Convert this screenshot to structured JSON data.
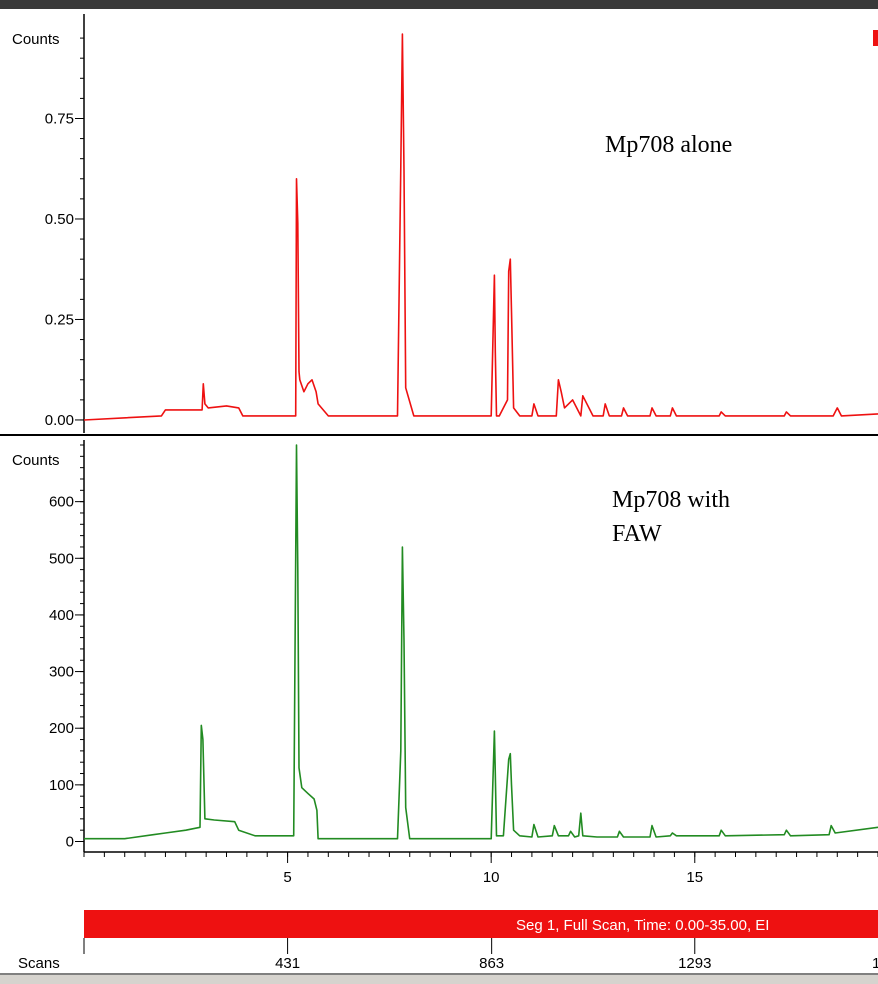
{
  "chart_data": [
    {
      "type": "line",
      "ylabel": "Counts",
      "annotation": "Mp708 alone",
      "color": "#ee1111",
      "xlim": [
        0,
        19.5
      ],
      "ylim": [
        -0.025,
        1.0
      ],
      "yticks": [
        {
          "value": 0.0,
          "label": "0.00"
        },
        {
          "value": 0.25,
          "label": "0.25"
        },
        {
          "value": 0.5,
          "label": "0.50"
        },
        {
          "value": 0.75,
          "label": "0.75"
        }
      ],
      "series": [
        {
          "x": [
            0,
            1.9,
            2.0,
            2.9,
            2.93,
            2.97,
            3.05,
            3.5,
            3.8,
            3.9,
            4.3,
            5.2,
            5.22,
            5.25,
            5.28,
            5.3,
            5.4,
            5.5,
            5.6,
            5.7,
            5.75,
            6.0,
            7.7,
            7.78,
            7.82,
            7.86,
            7.9,
            8.1,
            10.0,
            10.08,
            10.1,
            10.13,
            10.2,
            10.4,
            10.43,
            10.47,
            10.5,
            10.55,
            10.7,
            11.0,
            11.05,
            11.15,
            11.3,
            11.6,
            11.65,
            11.72,
            11.8,
            12.0,
            12.2,
            12.25,
            12.5,
            12.75,
            12.8,
            12.9,
            13.2,
            13.25,
            13.35,
            13.9,
            13.95,
            14.05,
            14.4,
            14.45,
            14.55,
            15.6,
            15.65,
            15.75,
            17.2,
            17.25,
            17.35,
            18.4,
            18.5,
            18.6,
            19.5
          ],
          "y": [
            0.0,
            0.01,
            0.025,
            0.025,
            0.09,
            0.04,
            0.03,
            0.035,
            0.03,
            0.01,
            0.01,
            0.01,
            0.6,
            0.49,
            0.12,
            0.1,
            0.07,
            0.09,
            0.1,
            0.07,
            0.04,
            0.01,
            0.01,
            0.63,
            0.96,
            0.62,
            0.08,
            0.01,
            0.01,
            0.36,
            0.17,
            0.01,
            0.01,
            0.05,
            0.37,
            0.4,
            0.27,
            0.03,
            0.01,
            0.01,
            0.04,
            0.01,
            0.01,
            0.01,
            0.1,
            0.07,
            0.03,
            0.05,
            0.01,
            0.06,
            0.01,
            0.01,
            0.04,
            0.01,
            0.01,
            0.03,
            0.01,
            0.01,
            0.03,
            0.01,
            0.01,
            0.03,
            0.01,
            0.01,
            0.02,
            0.01,
            0.01,
            0.02,
            0.01,
            0.01,
            0.03,
            0.01,
            0.015
          ]
        }
      ]
    },
    {
      "type": "line",
      "ylabel": "Counts",
      "annotation": [
        "Mp708 with",
        "FAW"
      ],
      "color": "#228b22",
      "xlim": [
        0,
        19.5
      ],
      "ylim": [
        -15,
        700
      ],
      "yticks": [
        {
          "value": 0,
          "label": "0"
        },
        {
          "value": 100,
          "label": "100"
        },
        {
          "value": 200,
          "label": "200"
        },
        {
          "value": 300,
          "label": "300"
        },
        {
          "value": 400,
          "label": "400"
        },
        {
          "value": 500,
          "label": "500"
        },
        {
          "value": 600,
          "label": "600"
        }
      ],
      "series": [
        {
          "x": [
            0,
            1.0,
            1.7,
            2.0,
            2.5,
            2.85,
            2.88,
            2.92,
            2.97,
            3.2,
            3.7,
            3.8,
            4.2,
            5.15,
            5.22,
            5.25,
            5.28,
            5.35,
            5.5,
            5.65,
            5.72,
            5.75,
            7.7,
            7.78,
            7.82,
            7.86,
            7.9,
            8.0,
            10.0,
            10.08,
            10.1,
            10.13,
            10.3,
            10.43,
            10.47,
            10.5,
            10.55,
            10.7,
            11.0,
            11.05,
            11.15,
            11.5,
            11.55,
            11.65,
            11.9,
            11.95,
            12.05,
            12.15,
            12.2,
            12.25,
            12.6,
            13.1,
            13.15,
            13.25,
            13.9,
            13.95,
            14.05,
            14.4,
            14.45,
            14.55,
            15.6,
            15.65,
            15.75,
            17.2,
            17.25,
            17.35,
            18.3,
            18.35,
            18.45,
            19.5
          ],
          "y": [
            5,
            5,
            12,
            15,
            20,
            25,
            205,
            180,
            40,
            38,
            35,
            20,
            10,
            10,
            700,
            480,
            130,
            95,
            85,
            75,
            55,
            5,
            5,
            160,
            520,
            355,
            60,
            5,
            5,
            195,
            120,
            10,
            10,
            145,
            155,
            100,
            20,
            10,
            8,
            30,
            8,
            10,
            28,
            10,
            10,
            18,
            8,
            10,
            50,
            10,
            8,
            8,
            18,
            8,
            8,
            28,
            8,
            10,
            15,
            10,
            10,
            20,
            10,
            12,
            20,
            10,
            12,
            28,
            15,
            25
          ]
        }
      ]
    }
  ],
  "x_axis": {
    "ticks": [
      {
        "value": 5,
        "label": "5"
      },
      {
        "value": 10,
        "label": "10"
      },
      {
        "value": 15,
        "label": "15"
      }
    ],
    "minor_step": 0.5
  },
  "segment_bar": {
    "text": "Seg 1, Full Scan, Time:  0.00-35.00, EI",
    "color": "#ee1111"
  },
  "scans_axis": {
    "label": "Scans",
    "ticks": [
      {
        "value": 431,
        "label": "431"
      },
      {
        "value": 863,
        "label": "863"
      },
      {
        "value": 1293,
        "label": "1293"
      }
    ],
    "trailing_label": "1"
  }
}
